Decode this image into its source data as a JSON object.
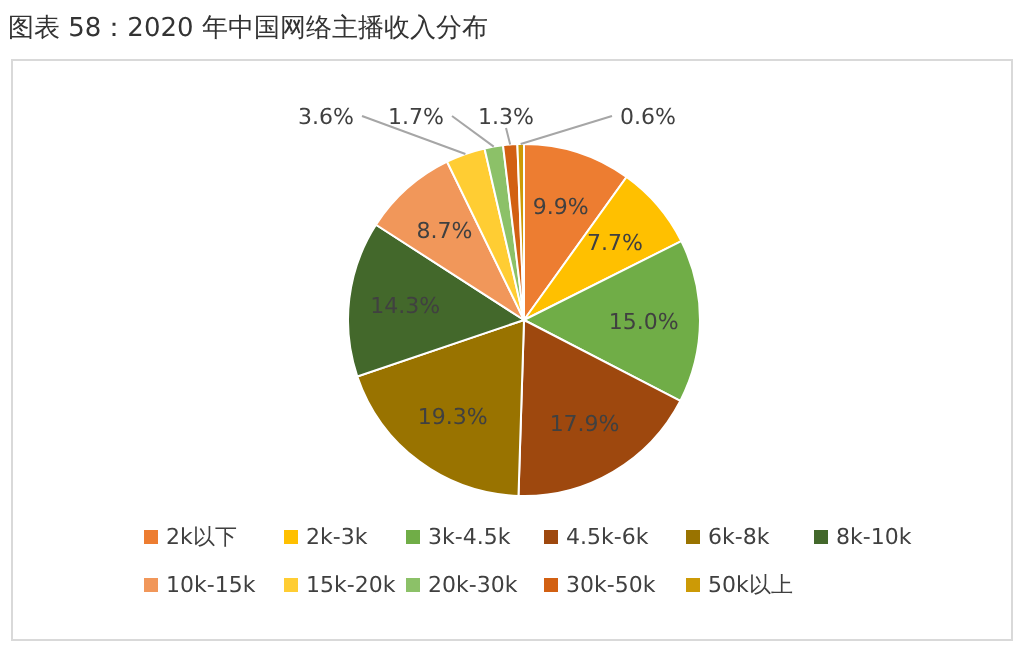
{
  "chart_data": {
    "type": "pie",
    "title": "图表 58：2020 年中国网络主播收入分布",
    "categories": [
      "2k以下",
      "2k-3k",
      "3k-4.5k",
      "4.5k-6k",
      "6k-8k",
      "8k-10k",
      "10k-15k",
      "15k-20k",
      "20k-30k",
      "30k-50k",
      "50k以上"
    ],
    "values": [
      9.9,
      7.7,
      15.0,
      17.9,
      19.3,
      14.3,
      8.7,
      3.6,
      1.7,
      1.3,
      0.6
    ],
    "colors": [
      "#ed7d31",
      "#ffc000",
      "#70ad47",
      "#9e480e",
      "#997300",
      "#43682b",
      "#f1975a",
      "#ffcd33",
      "#8cc168",
      "#d26012",
      "#cc9a06"
    ],
    "value_labels": [
      "9.9%",
      "7.7%",
      "15.0%",
      "17.9%",
      "19.3%",
      "14.3%",
      "8.7%",
      "3.6%",
      "1.7%",
      "1.3%",
      "0.6%"
    ],
    "legend": "bottom"
  }
}
